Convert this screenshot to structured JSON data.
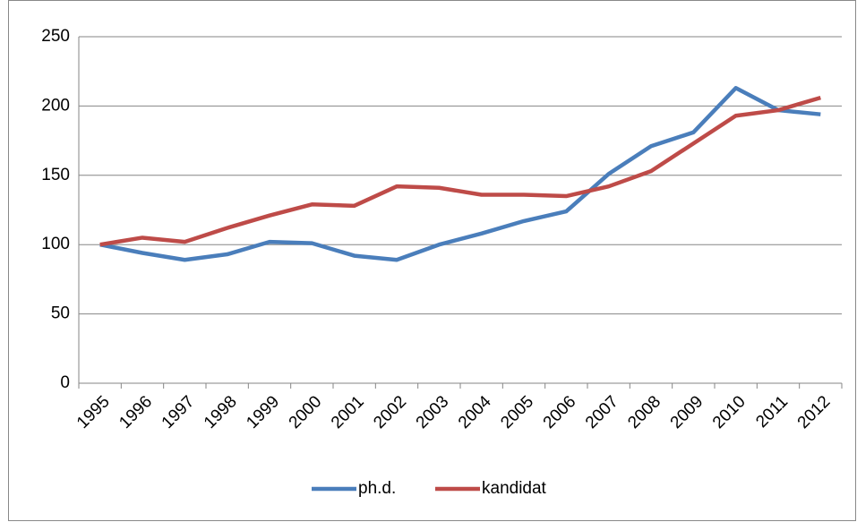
{
  "chart_data": {
    "type": "line",
    "categories": [
      "1995",
      "1996",
      "1997",
      "1998",
      "1999",
      "2000",
      "2001",
      "2002",
      "2003",
      "2004",
      "2005",
      "2006",
      "2007",
      "2008",
      "2009",
      "2010",
      "2011",
      "2012"
    ],
    "series": [
      {
        "name": "ph.d.",
        "color": "#4a7ebb",
        "values": [
          100,
          94,
          89,
          93,
          102,
          101,
          92,
          89,
          100,
          108,
          117,
          124,
          151,
          171,
          181,
          213,
          197,
          194
        ]
      },
      {
        "name": "kandidat",
        "color": "#be4b48",
        "values": [
          100,
          105,
          102,
          112,
          121,
          129,
          128,
          142,
          141,
          136,
          136,
          135,
          142,
          153,
          173,
          193,
          197,
          206
        ]
      }
    ],
    "ylim": [
      0,
      250
    ],
    "yticks": [
      0,
      50,
      100,
      150,
      200,
      250
    ],
    "grid": true,
    "legend": "bottom"
  }
}
